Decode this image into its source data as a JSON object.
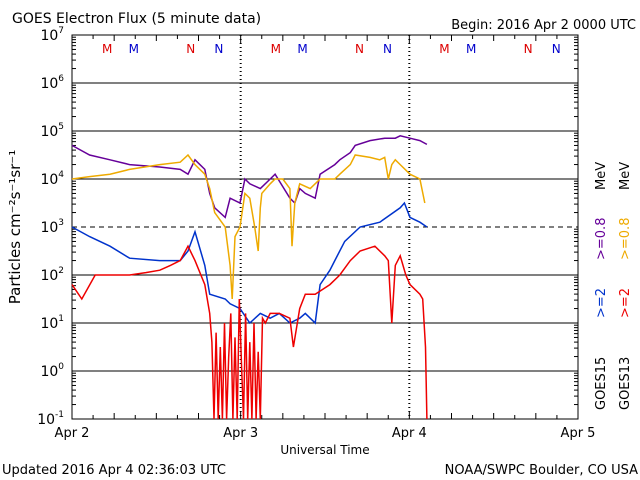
{
  "chart_data": {
    "type": "line",
    "title": "GOES Electron Flux (5 minute data)",
    "begin": "Begin: 2016 Apr 2 0000 UTC",
    "xlabel": "Universal Time",
    "ylabel": "Particles cm⁻²s⁻¹sr⁻¹",
    "yscale": "log",
    "ylim_log10": [
      -1,
      7
    ],
    "xlim_hours": [
      0,
      72
    ],
    "x_tick_labels": [
      {
        "h": 0,
        "label": "Apr 2"
      },
      {
        "h": 24,
        "label": "Apr 3"
      },
      {
        "h": 48,
        "label": "Apr 4"
      },
      {
        "h": 72,
        "label": "Apr 5"
      }
    ],
    "y_tick_exponents": [
      7,
      6,
      5,
      4,
      3,
      2,
      1,
      0,
      -1
    ],
    "dashed_gridline_exponent": 3,
    "local_time_markers": [
      {
        "h": 5,
        "label": "M",
        "color": "#dd0000"
      },
      {
        "h": 8.8,
        "label": "M",
        "color": "#0000cc"
      },
      {
        "h": 16.9,
        "label": "N",
        "color": "#dd0000"
      },
      {
        "h": 20.9,
        "label": "N",
        "color": "#0000cc"
      },
      {
        "h": 29,
        "label": "M",
        "color": "#dd0000"
      },
      {
        "h": 32.8,
        "label": "M",
        "color": "#0000cc"
      },
      {
        "h": 40.9,
        "label": "N",
        "color": "#dd0000"
      },
      {
        "h": 44.9,
        "label": "N",
        "color": "#0000cc"
      },
      {
        "h": 53,
        "label": "M",
        "color": "#dd0000"
      },
      {
        "h": 56.8,
        "label": "M",
        "color": "#0000cc"
      },
      {
        "h": 64.9,
        "label": "N",
        "color": "#dd0000"
      },
      {
        "h": 68.9,
        "label": "N",
        "color": "#0000cc"
      }
    ],
    "legend": {
      "energy_unit": "MeV",
      "goes15": "GOES15",
      "goes13": "GOES13",
      "g15_high": ">=0.8",
      "g13_high": ">=0.8",
      "g15_low": ">=2",
      "g13_low": ">=2"
    },
    "series": [
      {
        "name": "GOES15 >=0.8 MeV",
        "color": "#660099",
        "x_hours": [
          0,
          2.5,
          5.4,
          8.2,
          12.5,
          15.4,
          16.5,
          17.5,
          18.9,
          19.6,
          20.3,
          21.8,
          22.5,
          23.9,
          24.6,
          25.3,
          26.8,
          28.2,
          28.9,
          31,
          31.7,
          32.4,
          33.2,
          34.6,
          35.3,
          37.4,
          38.1,
          39.6,
          40.3,
          42.4,
          44.5,
          46,
          46.7,
          48.1,
          49.5,
          50.5
        ],
        "log10_values": [
          4.7,
          4.5,
          4.4,
          4.3,
          4.25,
          4.2,
          4.1,
          4.4,
          4.2,
          3.7,
          3.4,
          3.2,
          3.6,
          3.5,
          4.0,
          3.9,
          3.8,
          4.0,
          4.1,
          3.6,
          3.5,
          3.8,
          3.7,
          3.6,
          4.1,
          4.3,
          4.4,
          4.55,
          4.7,
          4.8,
          4.85,
          4.85,
          4.9,
          4.85,
          4.8,
          4.72
        ]
      },
      {
        "name": "GOES13 >=0.8 MeV",
        "color": "#eeaa00",
        "x_hours": [
          0,
          2.5,
          5.4,
          8.2,
          12.5,
          15.4,
          16.5,
          17.5,
          18.9,
          19.6,
          20.3,
          21.8,
          22.5,
          22.8,
          23.2,
          23.9,
          24.6,
          25.3,
          26,
          26.5,
          26.8,
          27,
          28.2,
          28.9,
          30,
          31,
          31.3,
          31.7,
          32.4,
          33.9,
          35.3,
          37.4,
          38.1,
          39.6,
          40.3,
          42.4,
          43.8,
          44.5,
          45,
          45.5,
          46,
          46.7,
          48.1,
          49.5,
          50.2
        ],
        "log10_values": [
          4.0,
          4.05,
          4.1,
          4.2,
          4.3,
          4.35,
          4.5,
          4.3,
          4.1,
          3.8,
          3.3,
          3.0,
          2.2,
          1.5,
          2.8,
          3.0,
          3.7,
          3.6,
          3.0,
          2.5,
          3.4,
          3.7,
          3.9,
          4.0,
          4.0,
          3.8,
          2.6,
          3.5,
          3.9,
          3.8,
          4.0,
          4.0,
          4.1,
          4.3,
          4.5,
          4.45,
          4.4,
          4.45,
          4.0,
          4.3,
          4.4,
          4.3,
          4.1,
          4.0,
          3.5
        ]
      },
      {
        "name": "GOES15 >=2 MeV",
        "color": "#0033cc",
        "x_hours": [
          0,
          2.5,
          5.4,
          8.2,
          12.5,
          15.4,
          16.5,
          17.5,
          18.9,
          19.6,
          21.8,
          22.5,
          23.9,
          25.3,
          26.8,
          28.2,
          29.5,
          31,
          32.4,
          33.2,
          34.6,
          35.3,
          36.7,
          37.4,
          38.8,
          41,
          43.8,
          46.7,
          47.3,
          48.1,
          49.5,
          50.5
        ],
        "log10_values": [
          3.0,
          2.8,
          2.6,
          2.35,
          2.3,
          2.3,
          2.5,
          2.9,
          2.2,
          1.6,
          1.5,
          1.4,
          1.3,
          1.0,
          1.2,
          1.1,
          1.2,
          1.0,
          1.1,
          1.2,
          1.0,
          1.8,
          2.1,
          2.3,
          2.7,
          3.0,
          3.1,
          3.4,
          3.5,
          3.2,
          3.1,
          3.0
        ]
      },
      {
        "name": "GOES13 >=2 MeV",
        "color": "#ee0000",
        "x_hours": [
          0,
          1.4,
          3.3,
          5.4,
          8.2,
          10.5,
          12.5,
          14,
          15.4,
          16.5,
          17.5,
          18.9,
          19.6,
          19.9,
          20.2,
          20.5,
          20.8,
          21.1,
          21.4,
          21.7,
          22,
          22.3,
          22.6,
          22.9,
          23.2,
          23.5,
          23.8,
          24.1,
          24.4,
          24.7,
          25,
          25.3,
          25.6,
          25.9,
          26.2,
          26.5,
          26.8,
          27.1,
          27.5,
          28.2,
          29.5,
          31,
          31.5,
          32.4,
          33.2,
          34.6,
          36.7,
          38.1,
          39.6,
          41,
          43.1,
          44.5,
          45,
          45.5,
          46,
          46.7,
          47.5,
          48.1,
          49.5,
          49.9,
          50.3,
          50.5
        ],
        "log10_values": [
          1.8,
          1.5,
          2.0,
          2.0,
          2.0,
          2.05,
          2.1,
          2.2,
          2.3,
          2.6,
          2.3,
          1.8,
          1.2,
          0.6,
          -1,
          0.8,
          -1,
          0.5,
          -1,
          1.0,
          -1,
          0.3,
          1.2,
          -1,
          0.7,
          -1,
          1.5,
          0.2,
          -1,
          1.2,
          -1,
          0.6,
          -1,
          1.0,
          -1,
          0.4,
          -1,
          1.1,
          1.0,
          1.2,
          1.2,
          1.1,
          0.5,
          1.3,
          1.6,
          1.6,
          1.8,
          2.0,
          2.3,
          2.5,
          2.6,
          2.4,
          2.3,
          1.0,
          2.2,
          2.4,
          2.0,
          1.8,
          1.6,
          1.5,
          0.5,
          -1
        ]
      }
    ]
  },
  "footer": {
    "updated": "Updated 2016 Apr  4 02:36:03 UTC",
    "credit": "NOAA/SWPC Boulder, CO USA"
  }
}
